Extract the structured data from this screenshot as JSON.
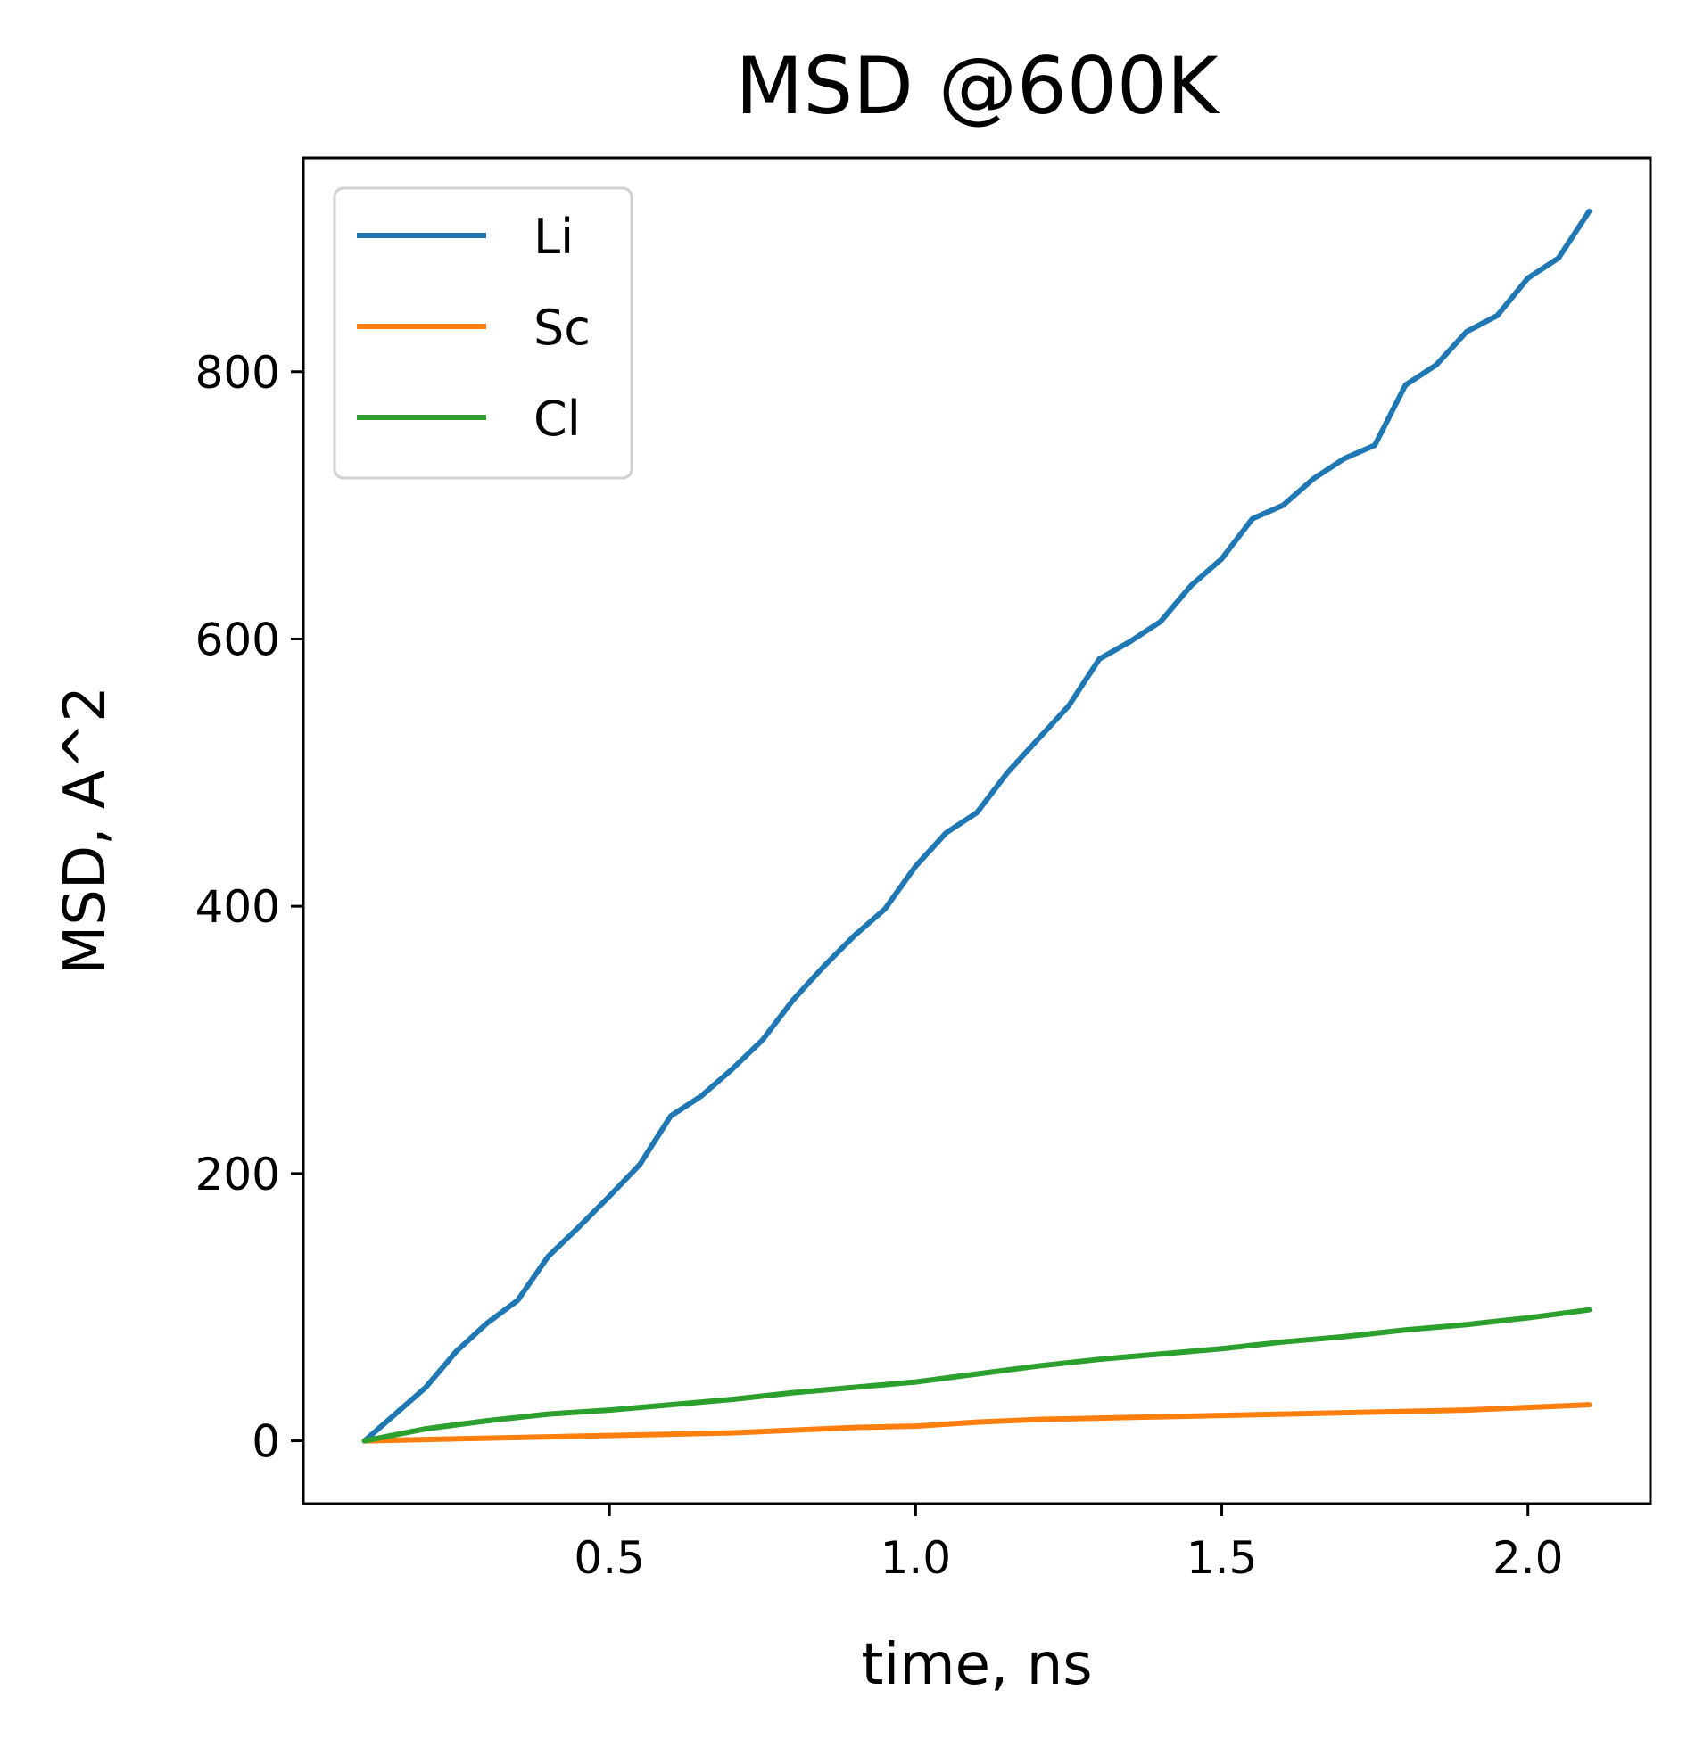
{
  "chart_data": {
    "type": "line",
    "title": "MSD @600K",
    "xlabel": "time, ns",
    "ylabel": "MSD, A^2",
    "xlim": [
      0.0,
      2.2
    ],
    "ylim": [
      -47,
      960
    ],
    "xticks": [
      0.5,
      1.0,
      1.5,
      2.0
    ],
    "xtick_labels": [
      "0.5",
      "1.0",
      "1.5",
      "2.0"
    ],
    "yticks": [
      0,
      200,
      400,
      600,
      800
    ],
    "ytick_labels": [
      "0",
      "200",
      "400",
      "600",
      "800"
    ],
    "grid": false,
    "legend_position": "top-left",
    "series": [
      {
        "name": "Li",
        "color": "#1f77b4",
        "x": [
          0.1,
          0.15,
          0.2,
          0.25,
          0.3,
          0.35,
          0.4,
          0.45,
          0.5,
          0.55,
          0.6,
          0.65,
          0.7,
          0.75,
          0.8,
          0.85,
          0.9,
          0.95,
          1.0,
          1.05,
          1.1,
          1.15,
          1.2,
          1.25,
          1.3,
          1.35,
          1.4,
          1.45,
          1.5,
          1.55,
          1.6,
          1.65,
          1.7,
          1.75,
          1.8,
          1.85,
          1.9,
          1.95,
          2.0,
          2.05,
          2.1
        ],
        "y": [
          0,
          20,
          40,
          67,
          88,
          105,
          138,
          160,
          183,
          207,
          243,
          258,
          278,
          300,
          330,
          355,
          378,
          398,
          430,
          455,
          470,
          500,
          525,
          550,
          585,
          598,
          613,
          640,
          660,
          690,
          700,
          720,
          735,
          745,
          790,
          805,
          830,
          842,
          870,
          885,
          920
        ]
      },
      {
        "name": "Sc",
        "color": "#ff7f0e",
        "x": [
          0.1,
          0.2,
          0.3,
          0.4,
          0.5,
          0.6,
          0.7,
          0.8,
          0.9,
          1.0,
          1.1,
          1.2,
          1.3,
          1.4,
          1.5,
          1.6,
          1.7,
          1.8,
          1.9,
          2.0,
          2.1
        ],
        "y": [
          0,
          1,
          2,
          3,
          4,
          5,
          6,
          8,
          10,
          11,
          14,
          16,
          17,
          18,
          19,
          20,
          21,
          22,
          23,
          25,
          27
        ]
      },
      {
        "name": "Cl",
        "color": "#2ca02c",
        "x": [
          0.1,
          0.2,
          0.3,
          0.4,
          0.5,
          0.6,
          0.7,
          0.8,
          0.9,
          1.0,
          1.1,
          1.2,
          1.3,
          1.4,
          1.5,
          1.6,
          1.7,
          1.8,
          1.9,
          2.0,
          2.1
        ],
        "y": [
          0,
          9,
          15,
          20,
          23,
          27,
          31,
          36,
          40,
          44,
          50,
          56,
          61,
          65,
          69,
          74,
          78,
          83,
          87,
          92,
          98
        ]
      }
    ]
  }
}
